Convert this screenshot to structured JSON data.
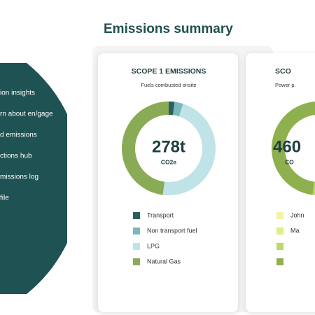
{
  "sidebar": {
    "items": [
      "ion insights",
      "rn about en/gage",
      "d emissions",
      "ctions hub",
      "missions log",
      "file"
    ]
  },
  "header": {
    "title": "Emissions summary"
  },
  "cards": [
    {
      "title": "SCOPE 1 EMISSIONS",
      "subtitle": "Fuels combusted onsite",
      "total": "278t",
      "unit": "CO2e",
      "segments": [
        {
          "name": "Transport",
          "color": "#2e5e5e",
          "value": 2
        },
        {
          "name": "Non transport fuel",
          "color": "#7ab8bc",
          "value": 3
        },
        {
          "name": "LPG",
          "color": "#bfe3e6",
          "value": 47
        },
        {
          "name": "Natural Gas",
          "color": "#8aab55",
          "value": 48
        }
      ]
    },
    {
      "title": "SCO",
      "subtitle": "Power p.",
      "total": "460",
      "unit": "CO",
      "segments": [
        {
          "name": "John",
          "color": "#f1f3a6",
          "value": 6
        },
        {
          "name": "Ma",
          "color": "#dcee85",
          "value": 24
        },
        {
          "color": "#bcd76a",
          "value": 22
        },
        {
          "color": "#8fb04e",
          "value": 48
        }
      ]
    }
  ]
}
